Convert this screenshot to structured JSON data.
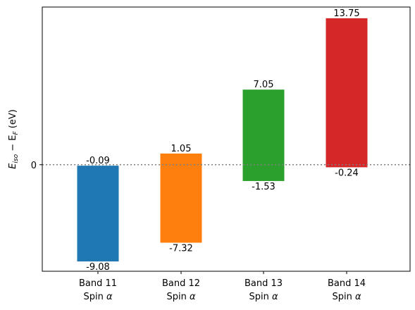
{
  "chart_data": {
    "type": "bar",
    "ylabel_main": "E",
    "ylabel_main_sub": "iso",
    "ylabel_minus": " − E",
    "ylabel_sub2": "F",
    "ylabel_unit": " (eV)",
    "yticks": [
      0
    ],
    "ylim": [
      -10.0,
      14.8
    ],
    "reference_line": 0,
    "categories": [
      {
        "line1": "Band 11",
        "line2": "Spin α"
      },
      {
        "line1": "Band 12",
        "line2": "Spin α"
      },
      {
        "line1": "Band 13",
        "line2": "Spin α"
      },
      {
        "line1": "Band 14",
        "line2": "Spin α"
      }
    ],
    "bars": [
      {
        "low": -9.08,
        "high": -0.09,
        "low_label": "-9.08",
        "high_label": "-0.09",
        "color": "#1f77b4"
      },
      {
        "low": -7.32,
        "high": 1.05,
        "low_label": "-7.32",
        "high_label": "1.05",
        "color": "#ff7f0e"
      },
      {
        "low": -1.53,
        "high": 7.05,
        "low_label": "-1.53",
        "high_label": "7.05",
        "color": "#2ca02c"
      },
      {
        "low": -0.24,
        "high": 13.75,
        "low_label": "-0.24",
        "high_label": "13.75",
        "color": "#d62728"
      }
    ]
  }
}
